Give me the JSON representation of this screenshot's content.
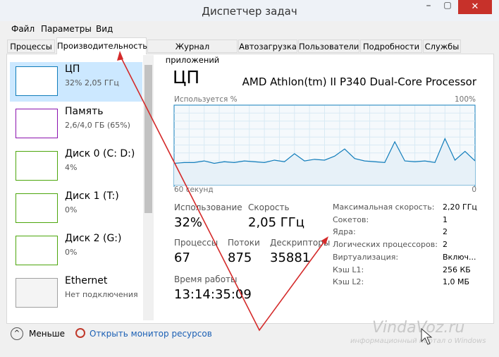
{
  "window": {
    "title": "Диспетчер задач"
  },
  "menu": [
    "Файл",
    "Параметры",
    "Вид"
  ],
  "tabs": [
    "Процессы",
    "Производительность",
    "Журнал приложений",
    "Автозагрузка",
    "Пользователи",
    "Подробности",
    "Службы"
  ],
  "sidebar": [
    {
      "name": "ЦП",
      "detail": "32% 2,05 ГГц"
    },
    {
      "name": "Память",
      "detail": "2,6/4,0 ГБ (65%)"
    },
    {
      "name": "Диск 0 (C: D:)",
      "detail": "4%"
    },
    {
      "name": "Диск 1 (T:)",
      "detail": "0%"
    },
    {
      "name": "Диск 2 (G:)",
      "detail": "0%"
    },
    {
      "name": "Ethernet",
      "detail": "Нет подключения"
    }
  ],
  "panel": {
    "title": "ЦП",
    "processor": "AMD Athlon(tm) II P340 Dual-Core Processor",
    "graph": {
      "y_label": "Используется %",
      "ylim": [
        0,
        100
      ],
      "yticks": [
        0,
        {
          "value": 100,
          "label": "100%"
        }
      ],
      "xlim": [
        60,
        0
      ],
      "xticks": [
        {
          "value": 60,
          "label": "60 секунд"
        },
        0
      ],
      "values": [
        27,
        28,
        28,
        30,
        27,
        29,
        28,
        30,
        29,
        28,
        31,
        29,
        39,
        30,
        32,
        31,
        36,
        45,
        33,
        30,
        29,
        28,
        54,
        30,
        29,
        30,
        28,
        58,
        31,
        42,
        30
      ]
    },
    "stats": [
      {
        "label": "Использование",
        "value": "32%"
      },
      {
        "label": "Скорость",
        "value": "2,05 ГГц"
      },
      {
        "label": "Процессы",
        "value": "67"
      },
      {
        "label": "Потоки",
        "value": "875"
      },
      {
        "label": "Дескрипторы",
        "value": "35881"
      },
      {
        "label": "Время работы",
        "value": "13:14:35:09"
      }
    ],
    "details": [
      {
        "label": "Максимальная скорость:",
        "value": "2,20 ГГц"
      },
      {
        "label": "Сокетов:",
        "value": "1"
      },
      {
        "label": "Ядра:",
        "value": "2"
      },
      {
        "label": "Логических процессоров:",
        "value": "2"
      },
      {
        "label": "Виртуализация:",
        "value": "Включ..."
      },
      {
        "label": "Кэш L1:",
        "value": "256 КБ"
      },
      {
        "label": "Кэш L2:",
        "value": "1,0 МБ"
      }
    ]
  },
  "footer": {
    "less": "Меньше",
    "monitor": "Открыть монитор ресурсов"
  },
  "watermark": {
    "site": "VindaVoz.ru",
    "tagline": "информационный портал о Windows"
  }
}
